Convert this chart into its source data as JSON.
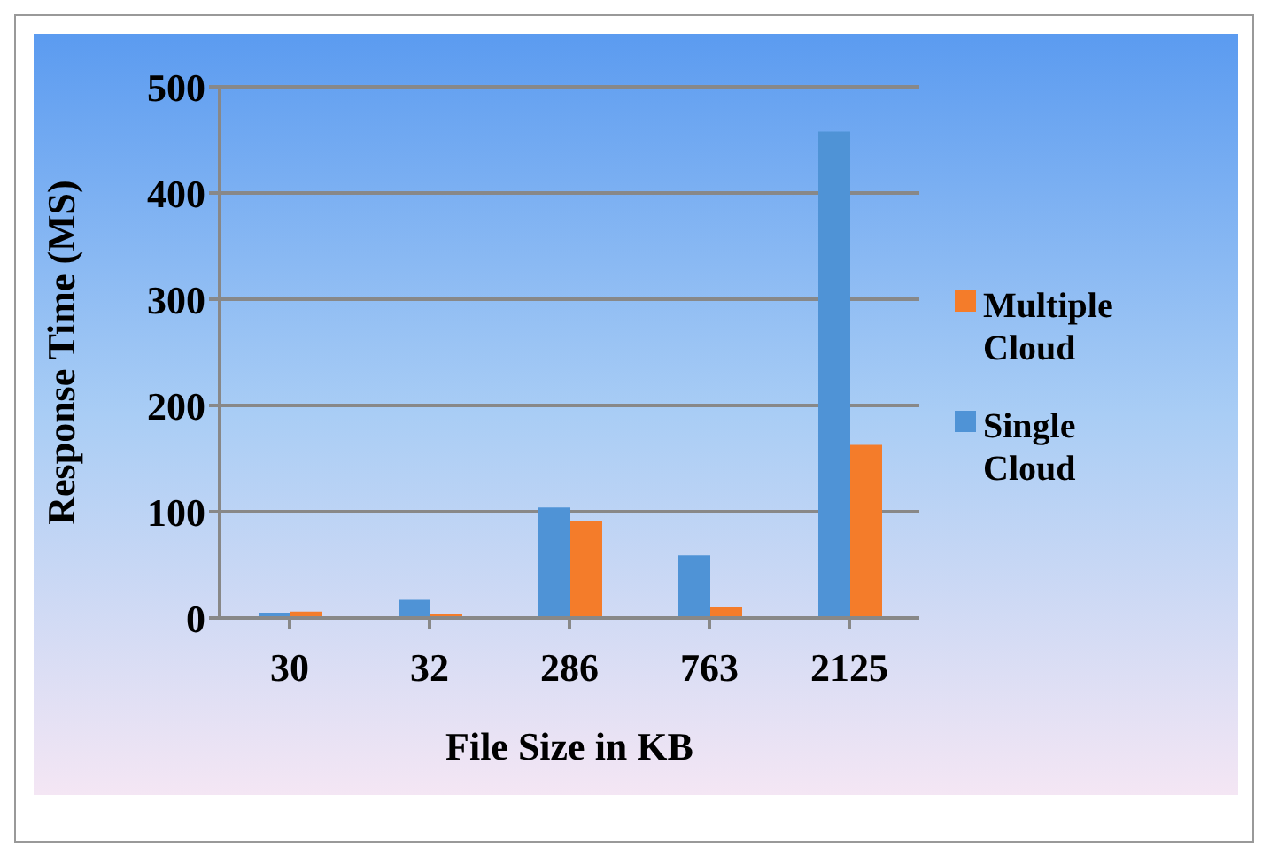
{
  "chart_data": {
    "type": "bar",
    "xlabel": "File Size in KB",
    "ylabel": "Response Time (MS)",
    "categories": [
      "30",
      "32",
      "286",
      "763",
      "2125"
    ],
    "series": [
      {
        "name": "Single Cloud",
        "color": "#4f93d6",
        "values": [
          5,
          17,
          104,
          59,
          458
        ]
      },
      {
        "name": "Multiple Cloud",
        "color": "#f47c2a",
        "values": [
          6,
          4,
          91,
          10,
          163
        ]
      }
    ],
    "ylim": [
      0,
      500
    ],
    "yticks": [
      0,
      100,
      200,
      300,
      400,
      500
    ],
    "grid": "y",
    "legend": "right"
  }
}
